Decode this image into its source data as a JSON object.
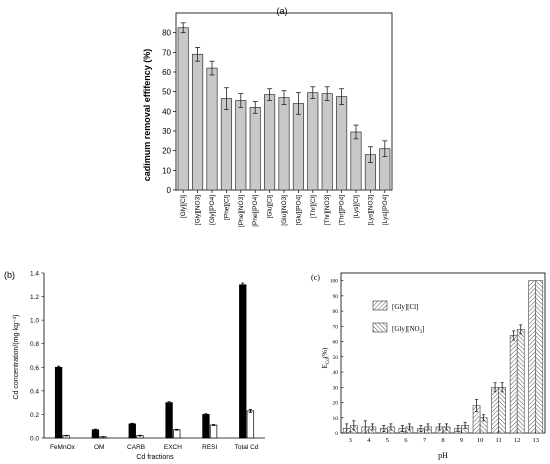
{
  "chart_data": [
    {
      "panel_label": "(a)",
      "type": "bar",
      "ylabel": "cadimum removal effifency (%)",
      "ylim": [
        0,
        90
      ],
      "yticks": [
        0,
        10,
        20,
        30,
        40,
        50,
        60,
        70,
        80
      ],
      "categories": [
        "[Gly][Cl]",
        "[Gly][NO3]",
        "[Gly][PO4]",
        "[Phe][Cl]",
        "[Phe][NO3]",
        "[Phe][PO4]",
        "[Glu][Cl]",
        "[Glu][NO3]",
        "[Glu][PO4]",
        "[Thr][Cl]",
        "[Thr][NO3]",
        "[Thr][PO4]",
        "[Lys][Cl]",
        "[Lys][NO3]",
        "[Lys][PO4]"
      ],
      "values": [
        82.5,
        69,
        62,
        46.5,
        45.5,
        42,
        48.5,
        47,
        44,
        49.5,
        49,
        47.5,
        29.5,
        18,
        21
      ],
      "errors": [
        2.5,
        3.5,
        3.5,
        5.5,
        3.5,
        3,
        3,
        3.5,
        5.5,
        3,
        3.5,
        4,
        3.5,
        4,
        4
      ],
      "bar_color": "#c8c8c8"
    },
    {
      "panel_label": "(b)",
      "type": "bar",
      "xlabel": "Cd fractions",
      "ylabel": "Cd concentration/(mg·kg⁻¹)",
      "ylim": [
        0,
        1.4
      ],
      "yticks": [
        "0.0",
        "0.2",
        "0.4",
        "0.6",
        "0.8",
        "1.0",
        "1.2",
        "1.4"
      ],
      "categories": [
        "FeMnOx",
        "OM",
        "CARB",
        "EXCH",
        "RESI",
        "Total Cd"
      ],
      "series": [
        {
          "values": [
            0.6,
            0.07,
            0.12,
            0.3,
            0.2,
            1.3
          ],
          "errors": [
            0.01,
            0.005,
            0.005,
            0.008,
            0.006,
            0.015
          ],
          "color": "#000000"
        },
        {
          "values": [
            0.02,
            0.01,
            0.02,
            0.07,
            0.11,
            0.23
          ],
          "errors": [
            0.003,
            0.002,
            0.003,
            0.004,
            0.004,
            0.012
          ],
          "color": "#ffffff"
        }
      ]
    },
    {
      "panel_label": "(c)",
      "type": "bar",
      "xlabel": "pH",
      "ylabel": "E",
      "ylabel_sub": "Cd",
      "ylabel_suffix": "(%)",
      "ylim": [
        0,
        105
      ],
      "yticks": [
        0,
        10,
        20,
        30,
        40,
        50,
        60,
        70,
        80,
        90,
        100
      ],
      "categories": [
        "3",
        "4",
        "5",
        "6",
        "7",
        "8",
        "9",
        "10",
        "11",
        "12",
        "13"
      ],
      "series": [
        {
          "name": "[Gly][Cl]",
          "values": [
            3,
            4,
            3,
            3,
            3,
            4,
            3,
            18,
            30,
            64,
            100
          ],
          "errors": [
            3,
            4,
            2,
            2,
            2,
            2,
            2,
            4,
            3,
            3,
            0
          ],
          "pattern": "diag-right"
        },
        {
          "name": "[Gly][NO3]",
          "name_base": "[Gly][NO",
          "name_sub": "3",
          "name_end": "]",
          "values": [
            5,
            4,
            4,
            4,
            4,
            4,
            5,
            10,
            30,
            68,
            100
          ],
          "errors": [
            3,
            2,
            2,
            2,
            2,
            2,
            2,
            2,
            3,
            3,
            0
          ],
          "pattern": "diag-left"
        }
      ]
    }
  ]
}
